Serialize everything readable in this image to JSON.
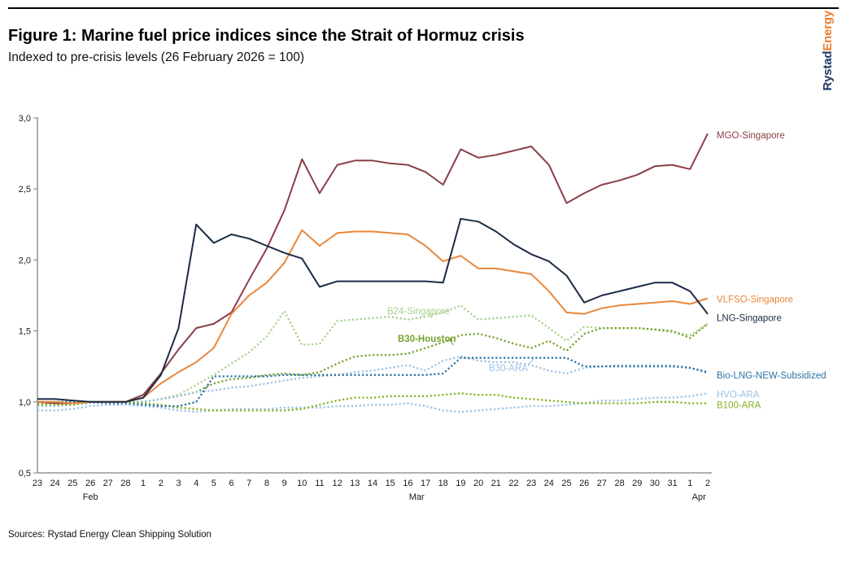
{
  "page": {
    "title": "Figure 1: Marine fuel price indices since the Strait of Hormuz crisis",
    "subtitle": "Indexed to pre-crisis levels (26 February 2026 = 100)",
    "source_note": "Sources: Rystad Energy Clean Shipping Solution",
    "logo": {
      "part1": "Rystad",
      "part2": "Energy",
      "color1": "#1F3864",
      "color2": "#ED7D31"
    }
  },
  "chart_data": {
    "type": "line",
    "title": "Figure 1: Marine fuel price indices since the Strait of Hormuz crisis",
    "subtitle": "Indexed to pre-crisis levels (26 February 2026 = 100)",
    "ylim": [
      0.5,
      3.0
    ],
    "grid": false,
    "legend_position": "right-and-inline",
    "y_ticks": [
      {
        "label": "3,0",
        "value": 3.0
      },
      {
        "label": "2,5",
        "value": 2.5
      },
      {
        "label": "2,0",
        "value": 2.0
      },
      {
        "label": "1,5",
        "value": 1.5
      },
      {
        "label": "1,0",
        "value": 1.0
      },
      {
        "label": "0,5",
        "value": 0.5
      }
    ],
    "x_dates": [
      "23",
      "24",
      "25",
      "26",
      "27",
      "28",
      "1",
      "2",
      "3",
      "4",
      "5",
      "6",
      "7",
      "8",
      "9",
      "10",
      "11",
      "12",
      "13",
      "14",
      "15",
      "16",
      "17",
      "18",
      "19",
      "20",
      "21",
      "22",
      "23",
      "24",
      "25",
      "26",
      "27",
      "28",
      "29",
      "30",
      "31",
      "1",
      "2"
    ],
    "month_labels": [
      {
        "label": "Feb",
        "index": 3
      },
      {
        "label": "Mar",
        "index": 21.5
      },
      {
        "label": "Apr",
        "index": 37.5
      }
    ],
    "series": [
      {
        "name": "B24-Singapore",
        "color": "#A9D18E",
        "style": "dotted",
        "values": [
          1.0,
          1.0,
          1.0,
          1.0,
          1.0,
          1.0,
          1.0,
          1.02,
          1.05,
          1.12,
          1.19,
          1.27,
          1.35,
          1.46,
          1.64,
          1.4,
          1.41,
          1.57,
          1.58,
          1.59,
          1.6,
          1.58,
          1.6,
          1.63,
          1.68,
          1.58,
          1.59,
          1.6,
          1.61,
          1.52,
          1.43,
          1.53,
          1.52,
          1.52,
          1.52,
          1.51,
          1.49,
          1.47,
          1.55
        ]
      },
      {
        "name": "B30-Houston",
        "color": "#76A22D",
        "style": "dotted",
        "values": [
          0.99,
          0.99,
          0.99,
          1.0,
          1.0,
          1.0,
          1.0,
          1.02,
          1.04,
          1.07,
          1.13,
          1.16,
          1.17,
          1.19,
          1.2,
          1.19,
          1.21,
          1.27,
          1.32,
          1.33,
          1.33,
          1.34,
          1.38,
          1.42,
          1.47,
          1.48,
          1.45,
          1.41,
          1.38,
          1.43,
          1.36,
          1.48,
          1.52,
          1.52,
          1.52,
          1.51,
          1.5,
          1.45,
          1.55
        ]
      },
      {
        "name": "B30-ARA",
        "color": "#9DC3E6",
        "style": "dotted",
        "values": [
          0.97,
          0.97,
          0.98,
          0.99,
          1.0,
          1.0,
          1.0,
          1.02,
          1.04,
          1.07,
          1.08,
          1.1,
          1.11,
          1.13,
          1.15,
          1.17,
          1.18,
          1.19,
          1.21,
          1.22,
          1.24,
          1.26,
          1.22,
          1.29,
          1.32,
          1.29,
          1.28,
          1.28,
          1.26,
          1.22,
          1.2,
          1.24,
          1.25,
          1.26,
          1.26,
          1.26,
          1.26,
          1.24,
          1.2
        ]
      },
      {
        "name": "HVO-ARA",
        "color": "#9DC3E6",
        "style": "dotted",
        "values": [
          0.94,
          0.94,
          0.95,
          0.97,
          0.98,
          0.98,
          0.97,
          0.96,
          0.94,
          0.93,
          0.94,
          0.95,
          0.95,
          0.95,
          0.96,
          0.96,
          0.96,
          0.97,
          0.97,
          0.98,
          0.98,
          0.99,
          0.97,
          0.94,
          0.93,
          0.94,
          0.95,
          0.96,
          0.97,
          0.97,
          0.98,
          0.99,
          1.01,
          1.01,
          1.02,
          1.03,
          1.03,
          1.04,
          1.06
        ]
      },
      {
        "name": "B100-ARA",
        "color": "#85B329",
        "style": "dotted",
        "values": [
          0.98,
          0.98,
          0.98,
          1.0,
          1.0,
          1.0,
          0.99,
          0.98,
          0.96,
          0.95,
          0.94,
          0.94,
          0.94,
          0.94,
          0.94,
          0.95,
          0.98,
          1.01,
          1.03,
          1.03,
          1.04,
          1.04,
          1.04,
          1.05,
          1.06,
          1.05,
          1.05,
          1.03,
          1.02,
          1.01,
          1.0,
          0.99,
          0.99,
          0.99,
          0.99,
          1.0,
          1.0,
          0.99,
          0.99
        ]
      },
      {
        "name": "Bio-LNG-NEW-Subsidized",
        "color": "#2E74A4",
        "style": "dotted",
        "values": [
          1.0,
          1.0,
          1.0,
          1.0,
          0.99,
          0.99,
          0.98,
          0.97,
          0.97,
          1.0,
          1.18,
          1.18,
          1.18,
          1.18,
          1.19,
          1.19,
          1.19,
          1.19,
          1.19,
          1.19,
          1.19,
          1.19,
          1.19,
          1.2,
          1.31,
          1.31,
          1.31,
          1.31,
          1.31,
          1.31,
          1.31,
          1.25,
          1.25,
          1.25,
          1.25,
          1.25,
          1.25,
          1.24,
          1.21
        ]
      },
      {
        "name": "MGO-Singapore",
        "color": "#8B3E46",
        "style": "solid",
        "values": [
          1.0,
          0.99,
          0.99,
          1.0,
          1.0,
          1.0,
          1.05,
          1.2,
          1.37,
          1.52,
          1.55,
          1.63,
          1.86,
          2.08,
          2.35,
          2.71,
          2.47,
          2.67,
          2.7,
          2.7,
          2.68,
          2.67,
          2.62,
          2.53,
          2.78,
          2.72,
          2.74,
          2.77,
          2.8,
          2.67,
          2.4,
          2.47,
          2.53,
          2.56,
          2.6,
          2.66,
          2.67,
          2.64,
          2.89
        ]
      },
      {
        "name": "VLFSO-Singapore",
        "color": "#E8873B",
        "style": "solid",
        "values": [
          1.0,
          1.0,
          0.99,
          1.0,
          1.0,
          1.0,
          1.03,
          1.13,
          1.21,
          1.28,
          1.38,
          1.62,
          1.75,
          1.84,
          1.98,
          2.21,
          2.1,
          2.19,
          2.2,
          2.2,
          2.19,
          2.18,
          2.1,
          1.99,
          2.03,
          1.94,
          1.94,
          1.92,
          1.9,
          1.78,
          1.63,
          1.62,
          1.66,
          1.68,
          1.69,
          1.7,
          1.71,
          1.69,
          1.73
        ]
      },
      {
        "name": "LNG-Singapore",
        "color": "#1B2B45",
        "style": "solid",
        "values": [
          1.02,
          1.02,
          1.01,
          1.0,
          1.0,
          1.0,
          1.03,
          1.19,
          1.52,
          2.25,
          2.12,
          2.18,
          2.15,
          2.1,
          2.05,
          2.01,
          1.81,
          1.85,
          1.85,
          1.85,
          1.85,
          1.85,
          1.85,
          1.84,
          2.29,
          2.27,
          2.2,
          2.11,
          2.04,
          1.99,
          1.89,
          1.7,
          1.75,
          1.78,
          1.81,
          1.84,
          1.84,
          1.78,
          1.62
        ]
      }
    ],
    "right_labels": [
      "MGO-Singapore",
      "VLFSO-Singapore",
      "LNG-Singapore",
      "Bio-LNG-NEW-Subsidized",
      "HVO-ARA",
      "B100-ARA"
    ],
    "inline_labels": [
      {
        "series": "B24-Singapore",
        "x": 476,
        "y": 386
      },
      {
        "series": "B30-Houston",
        "x": 489,
        "y": 420,
        "bold": true
      },
      {
        "series": "B30-ARA",
        "x": 601,
        "y": 456
      }
    ]
  }
}
